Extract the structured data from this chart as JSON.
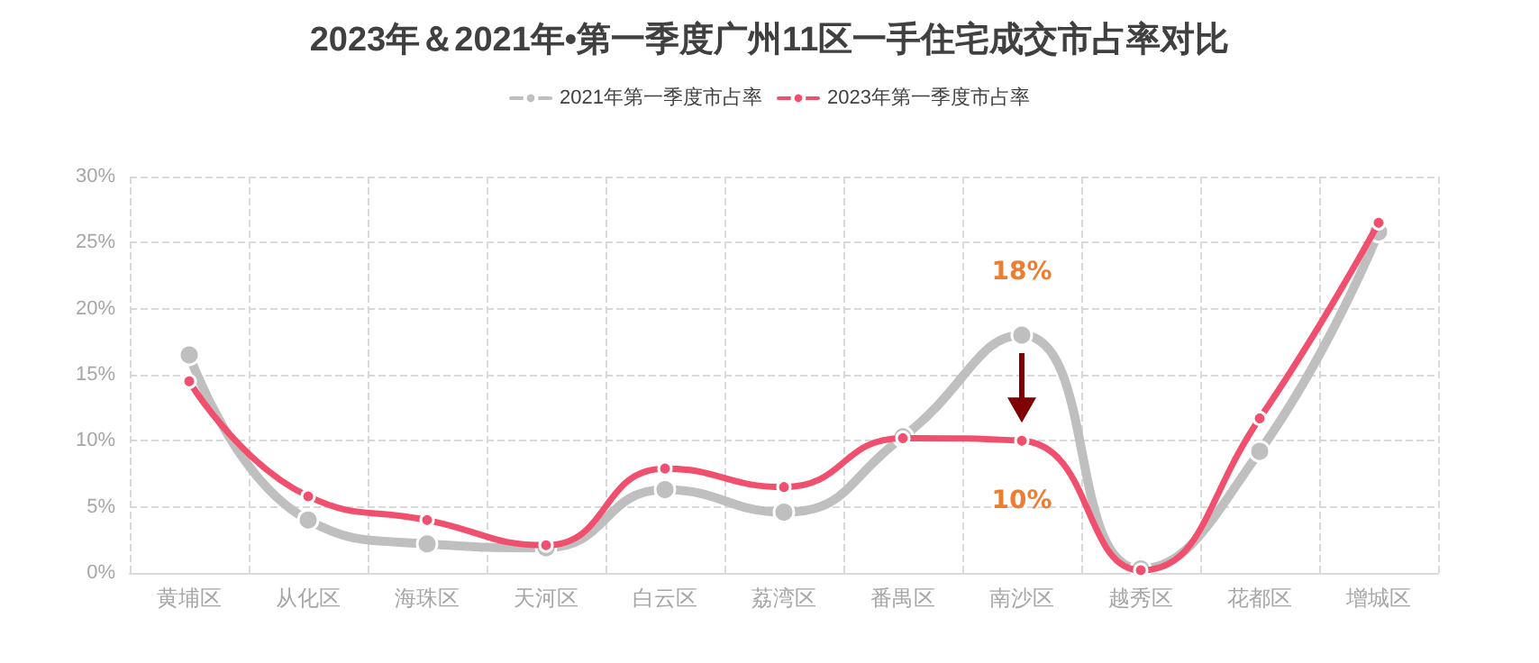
{
  "chart_data": {
    "type": "line",
    "title": "2023年＆2021年•第一季度广州11区一手住宅成交市占率对比",
    "categories": [
      "黄埔区",
      "从化区",
      "海珠区",
      "天河区",
      "白云区",
      "荔湾区",
      "番禺区",
      "南沙区",
      "越秀区",
      "花都区",
      "增城区"
    ],
    "series": [
      {
        "name": "2021年第一季度市占率",
        "color": "#bfbfbf",
        "values": [
          16.5,
          4.0,
          2.2,
          1.9,
          6.3,
          4.6,
          10.3,
          18,
          0.3,
          9.2,
          25.8
        ],
        "value_labels": [
          null,
          null,
          null,
          null,
          null,
          null,
          null,
          "18%",
          null,
          null,
          null
        ]
      },
      {
        "name": "2023年第一季度市占率",
        "color": "#f0506e",
        "values": [
          14.5,
          5.8,
          4.0,
          2.1,
          7.9,
          6.5,
          10.2,
          10,
          0.2,
          11.7,
          26.5
        ],
        "value_labels": [
          null,
          null,
          null,
          null,
          null,
          null,
          null,
          "10%",
          null,
          null,
          null
        ]
      }
    ],
    "ylim": [
      0,
      30
    ],
    "yticks": [
      {
        "value": 0,
        "label": "0%"
      },
      {
        "value": 5,
        "label": "5%"
      },
      {
        "value": 10,
        "label": "10%"
      },
      {
        "value": 15,
        "label": "15%"
      },
      {
        "value": 20,
        "label": "20%"
      },
      {
        "value": 25,
        "label": "25%"
      },
      {
        "value": 30,
        "label": "30%"
      }
    ],
    "grid": true,
    "legend": "top",
    "marker": "circle",
    "line_style": "solid"
  }
}
